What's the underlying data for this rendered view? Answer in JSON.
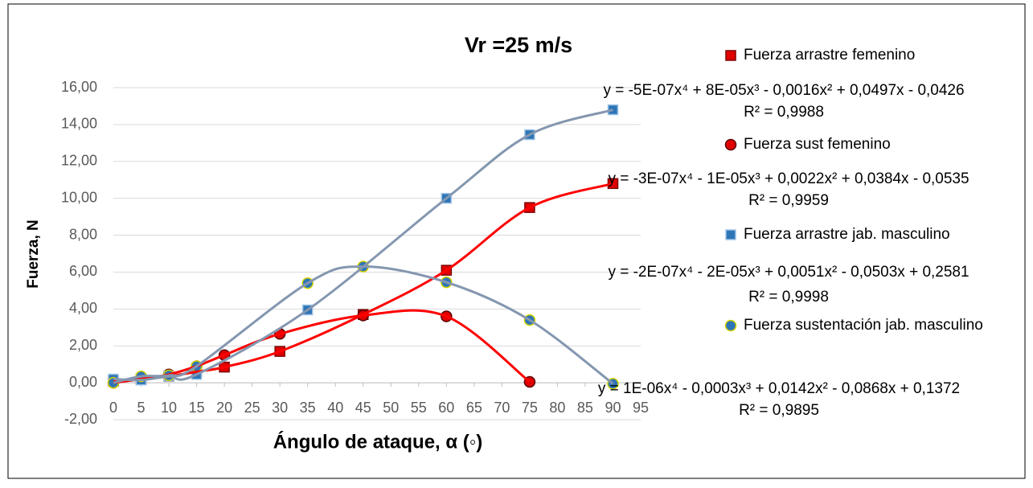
{
  "chart_data": {
    "type": "scatter",
    "title": "Vr =25 m/s",
    "x_label": "Ángulo de ataque, α (◦)",
    "y_label": "Fuerza, N",
    "xlim": [
      0,
      95
    ],
    "xticks": [
      0,
      5,
      10,
      15,
      20,
      25,
      30,
      35,
      40,
      45,
      50,
      55,
      60,
      65,
      70,
      75,
      80,
      85,
      90,
      95
    ],
    "ylim": [
      -2,
      16
    ],
    "yticks": [
      {
        "value": -2,
        "label": "-2,00"
      },
      {
        "value": 0,
        "label": "0,00"
      },
      {
        "value": 2,
        "label": "2,00"
      },
      {
        "value": 4,
        "label": "4,00"
      },
      {
        "value": 6,
        "label": "6,00"
      },
      {
        "value": 8,
        "label": "8,00"
      },
      {
        "value": 10,
        "label": "10,00"
      },
      {
        "value": 12,
        "label": "12,00"
      },
      {
        "value": 14,
        "label": "14,00"
      },
      {
        "value": 16,
        "label": "16,00"
      }
    ],
    "grid": true,
    "series": [
      {
        "name": "Fuerza arrastre femenino",
        "color": "#e00000",
        "edge": "#7f0000",
        "marker": "square",
        "trendline_color": "#ff0000",
        "x": [
          0,
          5,
          10,
          15,
          20,
          30,
          45,
          60,
          75,
          90
        ],
        "values": [
          0.1,
          0.2,
          0.35,
          0.6,
          0.85,
          1.7,
          3.7,
          6.1,
          9.5,
          10.8
        ],
        "equation": "y = -5E-07x⁴ + 8E-05x³ - 0,0016x² + 0,0497x - 0,0426",
        "r2": "R² = 0,9988"
      },
      {
        "name": "Fuerza sust femenino",
        "color": "#e00000",
        "edge": "#5a0000",
        "marker": "circle",
        "trendline_color": "#ff0000",
        "x": [
          0,
          5,
          10,
          15,
          20,
          30,
          45,
          60,
          75
        ],
        "values": [
          0,
          0.2,
          0.45,
          0.9,
          1.5,
          2.65,
          3.65,
          3.6,
          0.05
        ],
        "equation": "y = -3E-07x⁴ - 1E-05x³ + 0,0022x² + 0,0384x - 0,0535",
        "r2": "R² = 0,9959"
      },
      {
        "name": "Fuerza arrastre jab. masculino",
        "color": "#2e75b6",
        "edge": "#9dc3e6",
        "marker": "square",
        "trendline_color": "#8497b0",
        "x": [
          0,
          5,
          10,
          15,
          35,
          60,
          75,
          90
        ],
        "values": [
          0.2,
          0.15,
          0.35,
          0.45,
          3.95,
          10.0,
          13.45,
          14.8
        ],
        "equation": "y = -2E-07x⁴ - 2E-05x³ + 0,0051x² - 0,0503x + 0,2581",
        "r2": "R² = 0,9998"
      },
      {
        "name": "Fuerza sustentación jab. masculino",
        "color": "#2e75b6",
        "edge": "#d4d400",
        "marker": "circle",
        "trendline_color": "#8497b0",
        "x": [
          0,
          5,
          10,
          15,
          35,
          45,
          60,
          75,
          90
        ],
        "values": [
          0,
          0.35,
          0.4,
          0.9,
          5.4,
          6.3,
          5.45,
          3.4,
          -0.05
        ],
        "equation": "y = 1E-06x⁴ - 0,0003x³ + 0,0142x² - 0,0868x + 0,1372",
        "r2": "R² = 0,9895"
      }
    ]
  }
}
